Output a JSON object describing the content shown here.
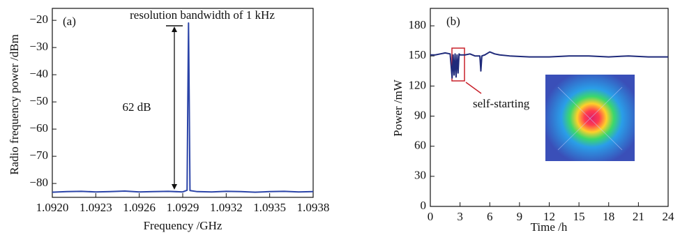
{
  "chart_data": [
    {
      "type": "line",
      "title": "(a)",
      "x_label": "Frequency /GHz",
      "y_label": "Radio frequency power /dBm",
      "annotations": [
        "resolution bandwidth of 1 kHz",
        "62 dB"
      ],
      "xlim": [
        1.092,
        1.0938
      ],
      "xticks": [
        {
          "value": 1.092,
          "label": "1.0920"
        },
        1.0923,
        1.0926,
        1.0929,
        1.0932,
        1.0935,
        1.0938
      ],
      "ylim": [
        -85.1,
        -15.6
      ],
      "yticks": [
        {
          "value": -20,
          "label": "−20"
        },
        {
          "value": -30,
          "label": "−30"
        },
        {
          "value": -40,
          "label": "−40"
        },
        {
          "value": -50,
          "label": "−50"
        },
        {
          "value": -60,
          "label": "−60"
        },
        {
          "value": -70,
          "label": "−70"
        },
        {
          "value": -80,
          "label": "−80"
        }
      ],
      "series": [
        {
          "color": "#2b44a8",
          "x": [
            1.092,
            1.0921,
            1.0922,
            1.0923,
            1.0924,
            1.0925,
            1.0926,
            1.0927,
            1.0928,
            1.0929,
            1.09293,
            1.092935,
            1.09294,
            1.092945,
            1.09295,
            1.093,
            1.0931,
            1.0932,
            1.0933,
            1.0934,
            1.0935,
            1.0936,
            1.0937,
            1.0938
          ],
          "values": [
            -83.2,
            -83.0,
            -82.9,
            -83.1,
            -83.0,
            -82.8,
            -83.1,
            -83.0,
            -82.9,
            -83.1,
            -82.5,
            -50,
            -21,
            -50,
            -82.6,
            -83.0,
            -83.1,
            -82.9,
            -83.0,
            -83.2,
            -83.0,
            -82.9,
            -83.1,
            -83.0
          ]
        }
      ]
    },
    {
      "type": "line",
      "title": "(b)",
      "x_label": "Time /h",
      "y_label": "Power /mW",
      "annotations": [
        "self-starting"
      ],
      "xlim": [
        0,
        24
      ],
      "xticks": [
        0,
        3,
        6,
        9,
        12,
        15,
        18,
        21,
        24
      ],
      "ylim": [
        0,
        197.4
      ],
      "yticks": [
        0,
        30,
        60,
        90,
        120,
        150,
        180
      ],
      "series": [
        {
          "color": "#1f2a7a",
          "x": [
            0,
            0.5,
            1,
            1.5,
            2,
            2.2,
            2.3,
            2.4,
            2.5,
            2.6,
            2.7,
            2.8,
            2.9,
            3,
            3.5,
            4,
            4.5,
            5,
            5.1,
            5.2,
            5.5,
            6,
            6.5,
            7,
            8,
            10,
            12,
            14,
            16,
            18,
            20,
            22,
            24
          ],
          "values": [
            151,
            151,
            152,
            153,
            152,
            128,
            151,
            131,
            152,
            129,
            151,
            133,
            152,
            151,
            151,
            152,
            150,
            150,
            135,
            150,
            151,
            154,
            152,
            151,
            150,
            149,
            149,
            150,
            150,
            149,
            150,
            149,
            149
          ]
        }
      ]
    }
  ]
}
